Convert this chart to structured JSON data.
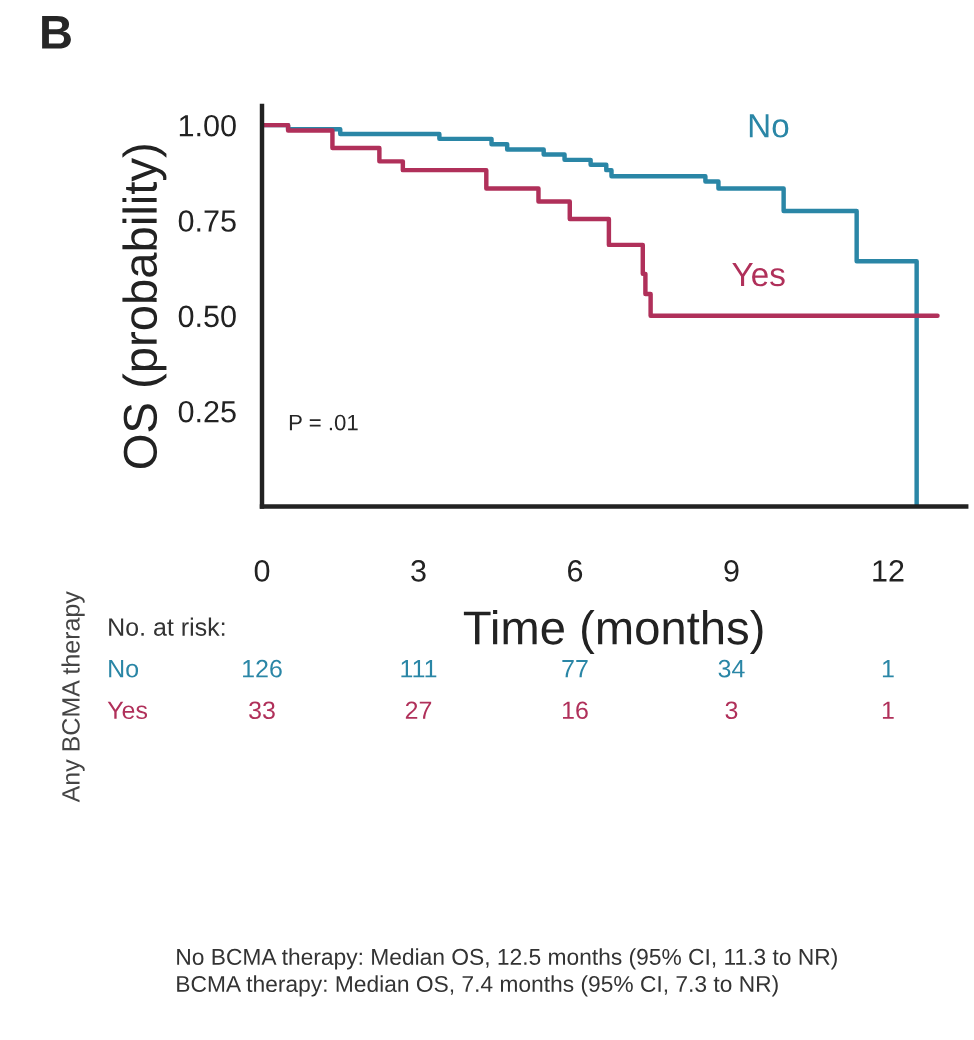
{
  "chart_data": {
    "type": "step",
    "title": "B",
    "xlabel": "Time (months)",
    "ylabel": "OS (probability)",
    "xlim": [
      0,
      13.5
    ],
    "ylim": [
      0,
      1.05
    ],
    "xticks": [
      0,
      3,
      6,
      9,
      12
    ],
    "yticks": [
      {
        "value": 0.25,
        "label": "0.25"
      },
      {
        "value": 0.5,
        "label": "0.50"
      },
      {
        "value": 0.75,
        "label": "0.75"
      },
      {
        "value": 1.0,
        "label": "1.00"
      }
    ],
    "grid": false,
    "legend": false,
    "marker": "none",
    "line_style": "solid",
    "series": [
      {
        "name": "No",
        "color": "#2a86a6",
        "x": [
          0,
          0.5,
          1.5,
          3.4,
          4.4,
          4.7,
          5.4,
          5.8,
          6.3,
          6.6,
          6.7,
          8.5,
          8.75,
          10.0,
          11.4,
          12.55,
          12.55
        ],
        "values": [
          1.0,
          0.989,
          0.977,
          0.964,
          0.95,
          0.936,
          0.923,
          0.909,
          0.896,
          0.882,
          0.866,
          0.852,
          0.834,
          0.775,
          0.643,
          0.643,
          0
        ]
      },
      {
        "name": "Yes",
        "color": "#b0305a",
        "x": [
          0,
          0.5,
          1.35,
          2.25,
          2.7,
          4.3,
          5.3,
          5.9,
          6.65,
          7.3,
          7.35,
          7.45,
          12.95
        ],
        "values": [
          1.0,
          0.986,
          0.94,
          0.905,
          0.882,
          0.834,
          0.8,
          0.754,
          0.686,
          0.61,
          0.557,
          0.5,
          0.5
        ]
      }
    ],
    "annotations": [
      "P = .01",
      "Any BCMA therapy",
      "No. at risk:",
      "126",
      "111",
      "77",
      "34",
      "1",
      "33",
      "27",
      "16",
      "3",
      "1",
      "No BCMA therapy: Median OS, 12.5 months (95% CI, 11.3 to NR)",
      "BCMA therapy: Median OS, 7.4 months (95% CI, 7.3 to NR)"
    ]
  }
}
